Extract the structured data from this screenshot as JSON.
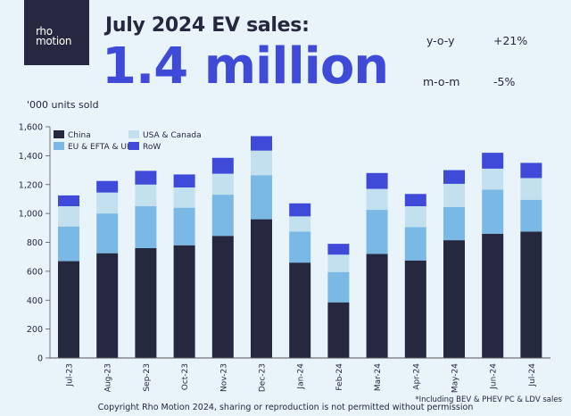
{
  "logo": {
    "text": "rho motion"
  },
  "header": {
    "title": "July 2024 EV sales:",
    "headline": "1.4 million",
    "yoy_label": "y-o-y",
    "yoy_value": "+21%",
    "mom_label": "m-o-m",
    "mom_value": "-5%"
  },
  "chart_data": {
    "type": "bar",
    "stacked": true,
    "ylabel": "'000 units sold",
    "ylim": [
      0,
      1600
    ],
    "yticks": [
      "0",
      "200",
      "400",
      "600",
      "800",
      "1,000",
      "1,200",
      "1,400",
      "1,600"
    ],
    "ytick_values": [
      0,
      200,
      400,
      600,
      800,
      1000,
      1200,
      1400,
      1600
    ],
    "grid": false,
    "legend_position": "top-left",
    "categories": [
      "Jul-23",
      "Aug-23",
      "Sep-23",
      "Oct-23",
      "Nov-23",
      "Dec-23",
      "Jan-24",
      "Feb-24",
      "Mar-24",
      "Apr-24",
      "May-24",
      "Jun-24",
      "Jul-24"
    ],
    "series": [
      {
        "name": "China",
        "color": "#262840",
        "values": [
          670,
          725,
          760,
          780,
          845,
          960,
          660,
          385,
          720,
          675,
          815,
          860,
          875
        ]
      },
      {
        "name": "EU & EFTA & UK",
        "color": "#7ab8e6",
        "values": [
          240,
          275,
          290,
          260,
          285,
          305,
          215,
          210,
          305,
          230,
          230,
          305,
          220
        ]
      },
      {
        "name": "USA & Canada",
        "color": "#c3e0ef",
        "values": [
          140,
          145,
          150,
          140,
          145,
          170,
          105,
          120,
          145,
          145,
          160,
          145,
          150
        ]
      },
      {
        "name": "RoW",
        "color": "#3f4bd8",
        "values": [
          75,
          80,
          95,
          90,
          110,
          100,
          90,
          75,
          110,
          85,
          95,
          110,
          105
        ]
      }
    ]
  },
  "footer": {
    "copyright": "Copyright Rho Motion 2024, sharing or reproduction is not permitted without permission",
    "note": "*Including BEV & PHEV PC & LDV sales"
  }
}
